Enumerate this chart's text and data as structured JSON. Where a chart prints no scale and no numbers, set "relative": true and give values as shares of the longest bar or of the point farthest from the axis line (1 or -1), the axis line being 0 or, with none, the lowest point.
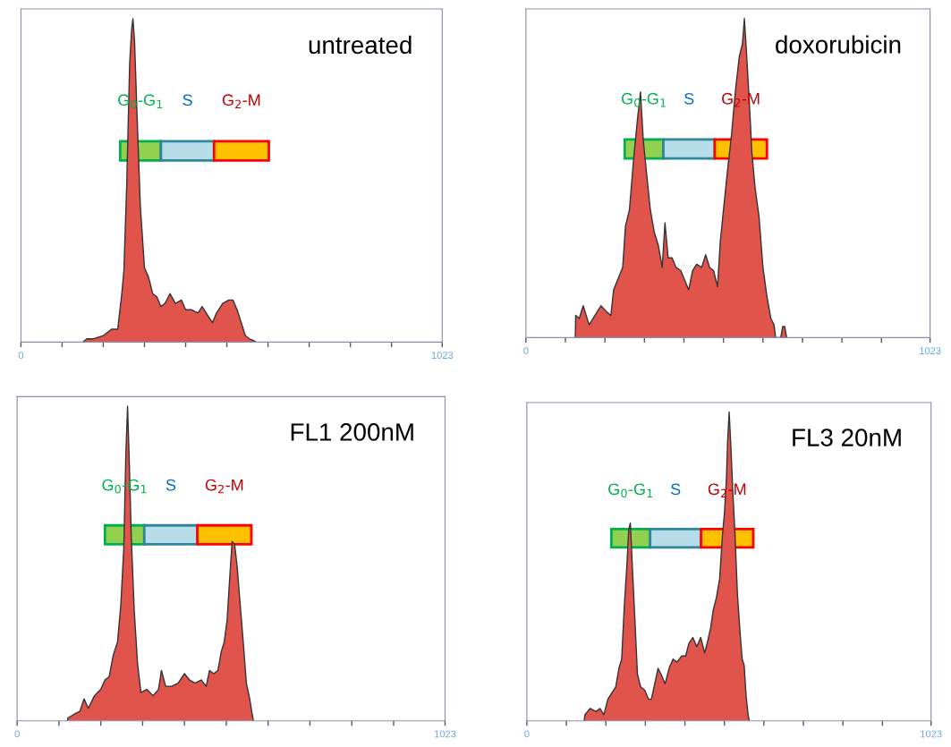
{
  "chart_data": [
    {
      "type": "area",
      "title": "untreated",
      "relative": true,
      "color": "#e0544c",
      "xlim": [
        0,
        1023
      ],
      "xticks": [
        0,
        {
          "value": 100,
          "label": null
        },
        {
          "value": 200,
          "label": null
        },
        {
          "value": 300,
          "label": null
        },
        {
          "value": 400,
          "label": null
        },
        {
          "value": 500,
          "label": null
        },
        {
          "value": 600,
          "label": null
        },
        {
          "value": 700,
          "label": null
        },
        {
          "value": 800,
          "label": null
        },
        {
          "value": 900,
          "label": null
        },
        1023
      ],
      "x": [
        150,
        160,
        175,
        200,
        220,
        235,
        245,
        250,
        257,
        264,
        269,
        272,
        276,
        282,
        290,
        300,
        310,
        320,
        330,
        340,
        350,
        362,
        375,
        390,
        400,
        415,
        430,
        440,
        455,
        465,
        475,
        490,
        505,
        515,
        525,
        535,
        545,
        555,
        565,
        570
      ],
      "values": [
        0,
        0.01,
        0.01,
        0.02,
        0.04,
        0.04,
        0.15,
        0.22,
        0.49,
        0.86,
        0.97,
        1.0,
        0.93,
        0.7,
        0.42,
        0.23,
        0.2,
        0.15,
        0.14,
        0.11,
        0.12,
        0.15,
        0.12,
        0.13,
        0.1,
        0.1,
        0.09,
        0.11,
        0.08,
        0.06,
        0.09,
        0.12,
        0.13,
        0.13,
        0.1,
        0.06,
        0.02,
        0.01,
        0.005,
        0
      ],
      "bands": [
        {
          "axis": "x",
          "from": 241,
          "to": 340,
          "label": "G$_{0}$-G$_{1}$",
          "color": "#92d050"
        },
        {
          "axis": "x",
          "from": 340,
          "to": 469,
          "label": "S",
          "color": "#b7dde8"
        },
        {
          "axis": "x",
          "from": 469,
          "to": 602,
          "label": "G$_{2}$-M",
          "color": "#ffc000"
        }
      ]
    },
    {
      "type": "area",
      "title": "doxorubicin",
      "relative": true,
      "color": "#e0544c",
      "xlim": [
        0,
        1023
      ],
      "xticks": [
        0,
        {
          "value": 100,
          "label": null
        },
        {
          "value": 200,
          "label": null
        },
        {
          "value": 300,
          "label": null
        },
        {
          "value": 400,
          "label": null
        },
        {
          "value": 500,
          "label": null
        },
        {
          "value": 600,
          "label": null
        },
        {
          "value": 700,
          "label": null
        },
        {
          "value": 800,
          "label": null
        },
        {
          "value": 900,
          "label": null
        },
        1023
      ],
      "x": [
        125,
        126,
        135,
        145,
        160,
        175,
        190,
        205,
        215,
        222,
        235,
        245,
        252,
        262,
        272,
        282,
        290,
        297,
        305,
        315,
        325,
        335,
        345,
        352,
        360,
        370,
        380,
        392,
        402,
        412,
        422,
        432,
        445,
        455,
        465,
        475,
        485,
        492,
        500,
        510,
        520,
        530,
        540,
        548,
        553,
        558,
        565,
        572,
        580,
        590,
        600,
        610,
        620,
        628,
        632,
        645,
        650,
        655,
        660
      ],
      "values": [
        0,
        0.07,
        0.06,
        0.1,
        0.04,
        0.07,
        0.1,
        0.08,
        0.07,
        0.15,
        0.19,
        0.22,
        0.35,
        0.4,
        0.55,
        0.68,
        0.77,
        0.62,
        0.52,
        0.4,
        0.33,
        0.29,
        0.22,
        0.36,
        0.25,
        0.25,
        0.22,
        0.21,
        0.18,
        0.15,
        0.21,
        0.23,
        0.22,
        0.26,
        0.22,
        0.21,
        0.16,
        0.3,
        0.4,
        0.52,
        0.63,
        0.77,
        0.88,
        0.92,
        1.0,
        0.9,
        0.75,
        0.58,
        0.47,
        0.38,
        0.22,
        0.13,
        0.06,
        0.04,
        0,
        0,
        0.035,
        0.035,
        0
      ],
      "bands": [
        {
          "axis": "x",
          "from": 250,
          "to": 348,
          "label": "G$_{0}$-G$_{1}$",
          "color": "#92d050"
        },
        {
          "axis": "x",
          "from": 348,
          "to": 478,
          "label": "S",
          "color": "#b7dde8"
        },
        {
          "axis": "x",
          "from": 478,
          "to": 610,
          "label": "G$_{2}$-M",
          "color": "#ffc000"
        }
      ]
    },
    {
      "type": "area",
      "title": "FL1 200nM",
      "relative": true,
      "color": "#e0544c",
      "xlim": [
        0,
        1023
      ],
      "xticks": [
        0,
        {
          "value": 100,
          "label": null
        },
        {
          "value": 200,
          "label": null
        },
        {
          "value": 300,
          "label": null
        },
        {
          "value": 400,
          "label": null
        },
        {
          "value": 500,
          "label": null
        },
        {
          "value": 600,
          "label": null
        },
        {
          "value": 700,
          "label": null
        },
        {
          "value": 800,
          "label": null
        },
        {
          "value": 900,
          "label": null
        },
        1023
      ],
      "x": [
        120,
        122,
        135,
        150,
        160,
        170,
        185,
        200,
        210,
        220,
        230,
        240,
        248,
        255,
        260,
        264,
        268,
        273,
        280,
        288,
        296,
        310,
        325,
        338,
        345,
        355,
        370,
        385,
        400,
        412,
        425,
        440,
        452,
        460,
        470,
        480,
        488,
        495,
        502,
        508,
        514,
        520,
        526,
        532,
        540,
        548,
        556,
        562,
        565
      ],
      "values": [
        0,
        0.01,
        0.02,
        0.03,
        0.07,
        0.04,
        0.08,
        0.1,
        0.13,
        0.14,
        0.21,
        0.25,
        0.37,
        0.55,
        0.85,
        1.0,
        0.83,
        0.58,
        0.35,
        0.18,
        0.09,
        0.1,
        0.08,
        0.1,
        0.16,
        0.11,
        0.11,
        0.12,
        0.15,
        0.13,
        0.12,
        0.13,
        0.11,
        0.16,
        0.15,
        0.16,
        0.22,
        0.25,
        0.32,
        0.45,
        0.57,
        0.56,
        0.49,
        0.39,
        0.26,
        0.12,
        0.07,
        0.02,
        0
      ],
      "bands": [
        {
          "axis": "x",
          "from": 210,
          "to": 304,
          "label": "G$_{0}$-G$_{1}$",
          "color": "#92d050"
        },
        {
          "axis": "x",
          "from": 304,
          "to": 431,
          "label": "S",
          "color": "#b7dde8"
        },
        {
          "axis": "x",
          "from": 431,
          "to": 560,
          "label": "G$_{2}$-M",
          "color": "#ffc000"
        }
      ]
    },
    {
      "type": "area",
      "title": "FL3 20nM",
      "relative": true,
      "color": "#e0544c",
      "xlim": [
        0,
        1023
      ],
      "xticks": [
        0,
        {
          "value": 100,
          "label": null
        },
        {
          "value": 200,
          "label": null
        },
        {
          "value": 300,
          "label": null
        },
        {
          "value": 400,
          "label": null
        },
        {
          "value": 500,
          "label": null
        },
        {
          "value": 600,
          "label": null
        },
        {
          "value": 700,
          "label": null
        },
        {
          "value": 800,
          "label": null
        },
        {
          "value": 900,
          "label": null
        },
        1023
      ],
      "x": [
        145,
        147,
        160,
        175,
        185,
        195,
        205,
        215,
        225,
        233,
        240,
        247,
        253,
        258,
        262,
        267,
        273,
        280,
        288,
        298,
        308,
        315,
        322,
        332,
        340,
        350,
        360,
        370,
        380,
        392,
        402,
        410,
        420,
        430,
        440,
        450,
        458,
        465,
        472,
        480,
        488,
        495,
        500,
        505,
        508,
        512,
        516,
        521,
        527,
        533,
        540,
        545,
        550,
        555,
        560,
        563
      ],
      "values": [
        0,
        0.02,
        0.04,
        0.03,
        0.04,
        0.02,
        0.07,
        0.09,
        0.11,
        0.17,
        0.2,
        0.38,
        0.5,
        0.62,
        0.64,
        0.5,
        0.34,
        0.15,
        0.11,
        0.1,
        0.07,
        0.07,
        0.11,
        0.17,
        0.15,
        0.12,
        0.17,
        0.2,
        0.19,
        0.21,
        0.21,
        0.25,
        0.27,
        0.24,
        0.27,
        0.22,
        0.26,
        0.3,
        0.36,
        0.4,
        0.46,
        0.6,
        0.67,
        0.78,
        0.9,
        1.0,
        0.9,
        0.75,
        0.6,
        0.41,
        0.28,
        0.2,
        0.18,
        0.08,
        0.02,
        0
      ],
      "bands": [
        {
          "axis": "x",
          "from": 214,
          "to": 312,
          "label": "G$_{0}$-G$_{1}$",
          "color": "#92d050"
        },
        {
          "axis": "x",
          "from": 312,
          "to": 441,
          "label": "S",
          "color": "#b7dde8"
        },
        {
          "axis": "x",
          "from": 441,
          "to": 573,
          "label": "G$_{2}$-M",
          "color": "#ffc000"
        }
      ]
    }
  ]
}
